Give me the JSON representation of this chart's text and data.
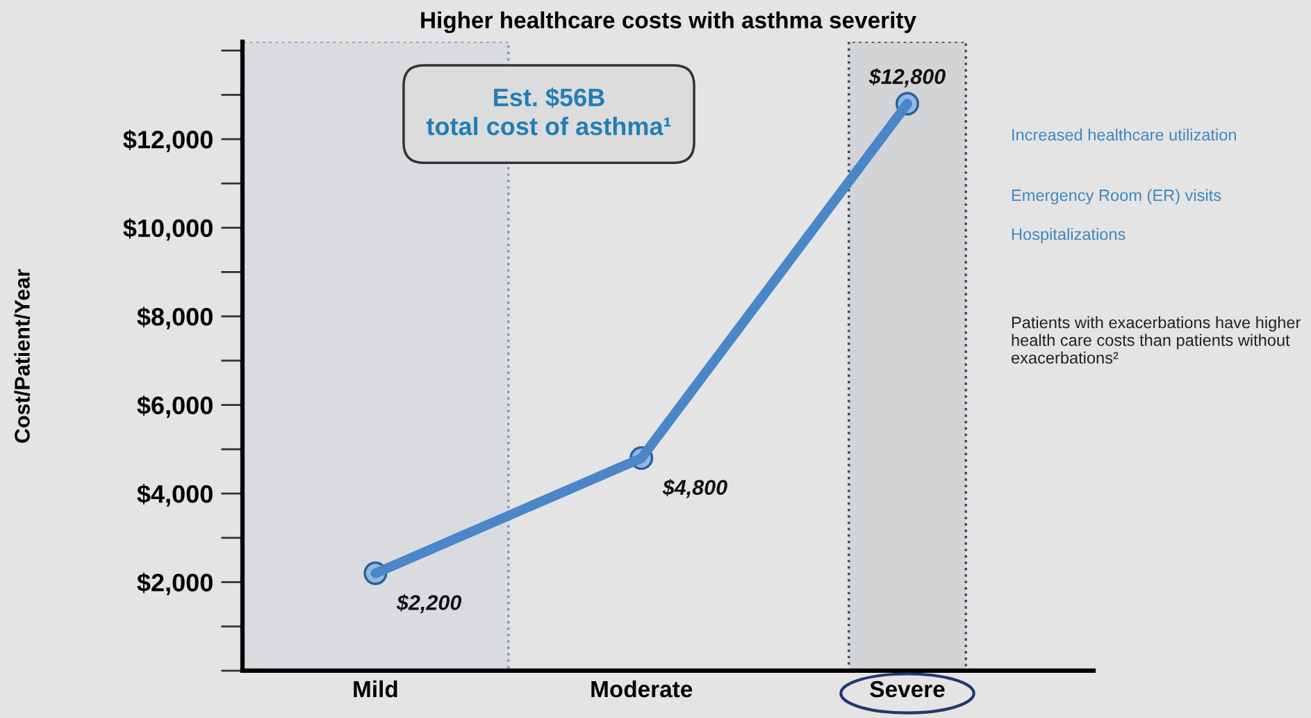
{
  "chart_data": {
    "type": "line",
    "title": "Higher healthcare costs with asthma severity",
    "ylabel": "Cost/Patient/Year",
    "categories": [
      "Mild",
      "Moderate",
      "Severe"
    ],
    "values": [
      2200,
      4800,
      12800
    ],
    "color": "#4a86c8",
    "value_labels": [
      "$2,200",
      "$4,800",
      "$12,800"
    ],
    "marker": "circle",
    "line_style": "solid",
    "ylim": [
      0,
      14200
    ],
    "yticks": [
      {
        "value": 2000,
        "label": "$2,000"
      },
      {
        "value": 4000,
        "label": "$4,000"
      },
      {
        "value": 6000,
        "label": "$6,000"
      },
      {
        "value": 8000,
        "label": "$8,000"
      },
      {
        "value": 10000,
        "label": "$10,000"
      },
      {
        "value": 12000,
        "label": "$12,000"
      }
    ],
    "bands": [
      {
        "axis": "x",
        "from": "Mild",
        "to": "Mild",
        "color": "#8497b8"
      },
      {
        "axis": "x",
        "from": "Severe",
        "to": "Severe",
        "color": "#3b4a63"
      }
    ],
    "annotations": [
      "Est. $56B\ntotal cost of asthma¹",
      "Increased healthcare utilization",
      "Emergency Room (ER) visits",
      "Hospitalizations",
      "Patients with exacerbations have higher health care costs than patients without exacerbations²"
    ]
  }
}
